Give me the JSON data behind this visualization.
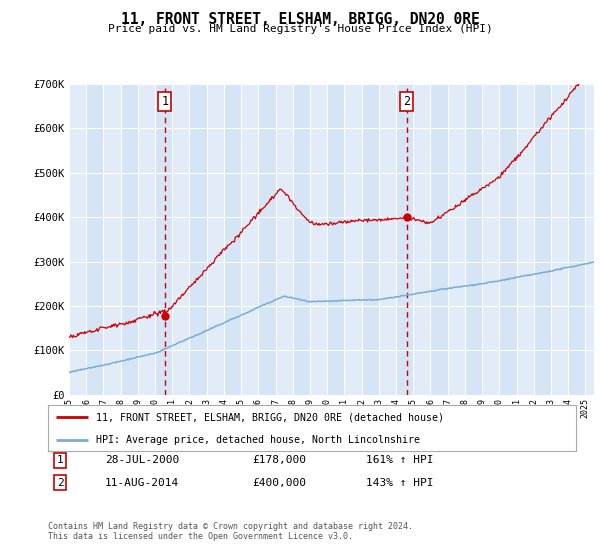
{
  "title": "11, FRONT STREET, ELSHAM, BRIGG, DN20 0RE",
  "subtitle": "Price paid vs. HM Land Registry's House Price Index (HPI)",
  "legend_line1": "11, FRONT STREET, ELSHAM, BRIGG, DN20 0RE (detached house)",
  "legend_line2": "HPI: Average price, detached house, North Lincolnshire",
  "sale1_date_str": "28-JUL-2000",
  "sale1_price": 178000,
  "sale1_hpi_pct": "161% ↑ HPI",
  "sale1_x": 2000.57,
  "sale2_date_str": "11-AUG-2014",
  "sale2_price": 400000,
  "sale2_hpi_pct": "143% ↑ HPI",
  "sale2_x": 2014.61,
  "ylim": [
    0,
    700000
  ],
  "xlim_left": 1995.0,
  "xlim_right": 2025.5,
  "plot_bg": "#dce9f8",
  "red_line_color": "#cc0000",
  "blue_line_color": "#7aadd4",
  "vline_color": "#cc0000",
  "footnote": "Contains HM Land Registry data © Crown copyright and database right 2024.\nThis data is licensed under the Open Government Licence v3.0."
}
